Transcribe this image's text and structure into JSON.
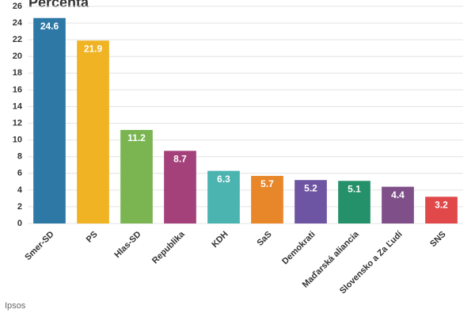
{
  "chart_data": {
    "type": "bar",
    "title": "Percenta",
    "source": "Ipsos",
    "categories": [
      "Smer-SD",
      "PS",
      "Hlas-SD",
      "Republika",
      "KDH",
      "SaS",
      "Demokrati",
      "Maďarská aliancia",
      "Slovensko a Za Ľudí",
      "SNS"
    ],
    "values": [
      24.6,
      21.9,
      11.2,
      8.7,
      6.3,
      5.7,
      5.2,
      5.1,
      4.4,
      3.2
    ],
    "colors": [
      "#2e78a6",
      "#f0b323",
      "#7ab552",
      "#a4417a",
      "#4bb3b0",
      "#e8862a",
      "#6e55a3",
      "#24916a",
      "#7f4f8a",
      "#e0484a"
    ],
    "ylim": [
      0,
      26
    ],
    "yticks": [
      0,
      2,
      4,
      6,
      8,
      10,
      12,
      14,
      16,
      18,
      20,
      22,
      24,
      26
    ],
    "grid": true
  }
}
